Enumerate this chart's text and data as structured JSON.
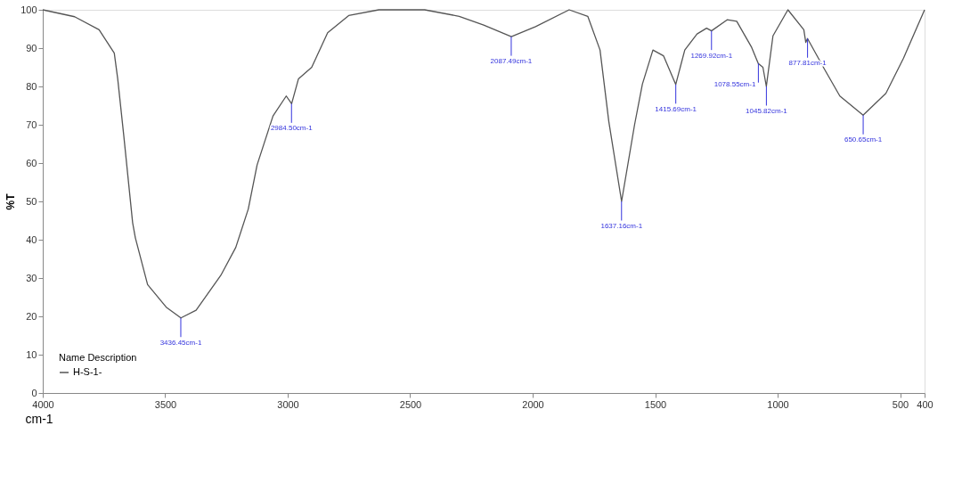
{
  "chart_data": {
    "type": "line",
    "xlabel": "cm-1",
    "ylabel": "%T",
    "legend_title": "Name Description",
    "legend": "bottom left",
    "xlim": [
      4000,
      400
    ],
    "xticks": [
      4000,
      3500,
      3000,
      2500,
      2000,
      1500,
      1000,
      500,
      400
    ],
    "ylim": [
      0,
      100
    ],
    "yticks": [
      0,
      10,
      20,
      30,
      40,
      50,
      60,
      70,
      80,
      90,
      100
    ],
    "grid": false,
    "series": [
      {
        "name": "H-S-1-",
        "color": "#555555",
        "x": [
          4000,
          3870,
          3770,
          3708,
          3694,
          3669,
          3633,
          3622,
          3572,
          3496,
          3436,
          3374,
          3273,
          3212,
          3161,
          3125,
          3060,
          3006,
          2984,
          2956,
          2902,
          2837,
          2751,
          2628,
          2441,
          2300,
          2200,
          2087,
          1988,
          1851,
          1775,
          1725,
          1689,
          1637,
          1602,
          1584,
          1552,
          1509,
          1466,
          1416,
          1379,
          1329,
          1290,
          1270,
          1206,
          1167,
          1106,
          1079,
          1060,
          1046,
          1019,
          958,
          893,
          885,
          878,
          807,
          746,
          651,
          558,
          486,
          400
        ],
        "values": [
          100,
          98.2,
          94.8,
          88.7,
          82,
          67,
          44.4,
          40.5,
          28.3,
          22.4,
          19.6,
          21.6,
          30.7,
          38,
          48,
          59.5,
          72.3,
          77.5,
          75.5,
          82,
          85,
          94,
          98.5,
          100,
          100,
          98.3,
          96,
          93,
          95.6,
          100,
          98.3,
          89.5,
          70.8,
          50,
          63.2,
          70,
          80.6,
          89.5,
          88,
          80.5,
          89.5,
          93.7,
          95.2,
          94.5,
          97.4,
          97,
          90.2,
          86,
          85,
          80,
          93.2,
          100,
          94.8,
          91.5,
          92.5,
          84.3,
          77.5,
          72.5,
          78.2,
          87.4,
          100
        ]
      }
    ],
    "annotations": [
      {
        "text": "3436.45cm-1",
        "x": 3436.45,
        "y": 19.6
      },
      {
        "text": "2984.50cm-1",
        "x": 2984.5,
        "y": 75.5
      },
      {
        "text": "2087.49cm-1",
        "x": 2087.49,
        "y": 93
      },
      {
        "text": "1637.16cm-1",
        "x": 1637.16,
        "y": 50
      },
      {
        "text": "1415.69cm-1",
        "x": 1415.69,
        "y": 80.5
      },
      {
        "text": "1269.92cm-1",
        "x": 1269.92,
        "y": 94.5
      },
      {
        "text": "1078.55cm-1",
        "x": 1078.55,
        "y": 86
      },
      {
        "text": "1045.82cm-1",
        "x": 1045.82,
        "y": 80
      },
      {
        "text": "877.81cm-1",
        "x": 877.81,
        "y": 92.5
      },
      {
        "text": "650.65cm-1",
        "x": 650.65,
        "y": 72.5
      }
    ]
  }
}
